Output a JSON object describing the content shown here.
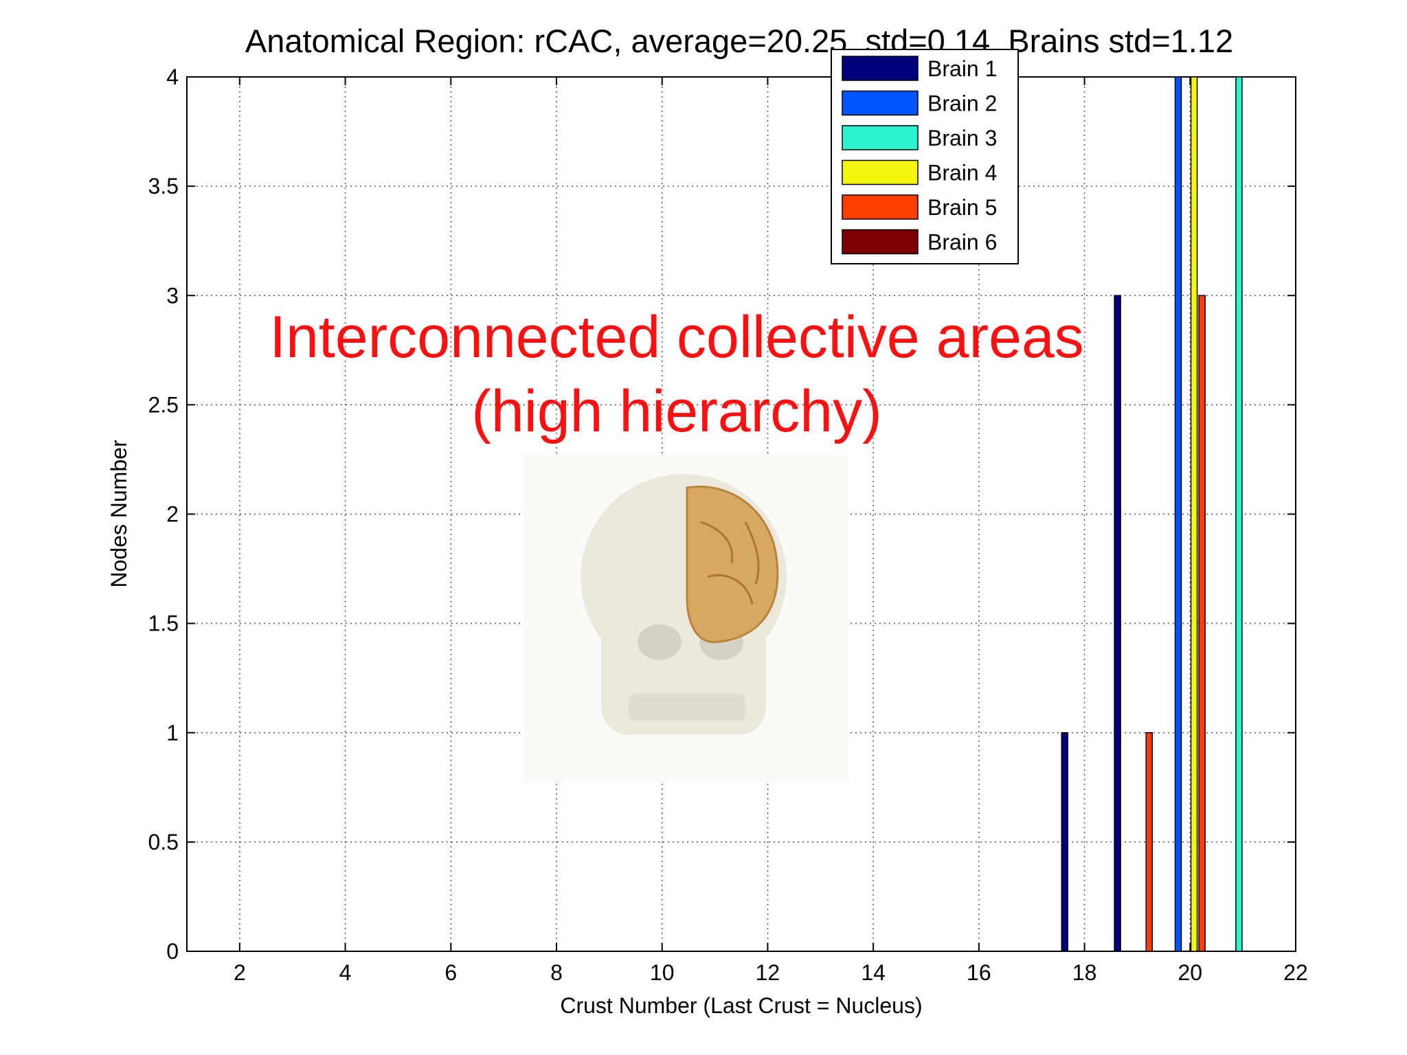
{
  "chart_data": {
    "type": "bar",
    "title": "Anatomical Region:  rCAC, average=20.25, std=0.14, Brains std=1.12",
    "xlabel": "Crust Number (Last Crust = Nucleus)",
    "ylabel": "Nodes Number",
    "xlim": [
      1,
      22
    ],
    "ylim": [
      0,
      4
    ],
    "xticks": [
      2,
      4,
      6,
      8,
      10,
      12,
      14,
      16,
      18,
      20,
      22
    ],
    "yticks": [
      0,
      0.5,
      1,
      1.5,
      2,
      2.5,
      3,
      3.5,
      4
    ],
    "xtick_labels": [
      "2",
      "4",
      "6",
      "8",
      "10",
      "12",
      "14",
      "16",
      "18",
      "20",
      "22"
    ],
    "ytick_labels": [
      "0",
      "0.5",
      "1",
      "1.5",
      "2",
      "2.5",
      "3",
      "3.5",
      "4"
    ],
    "grid": true,
    "legend_position": "top-right",
    "categories": [
      18,
      19,
      20,
      21
    ],
    "series": [
      {
        "name": "Brain 1",
        "color": "#00007f",
        "values": [
          1,
          3,
          0,
          0
        ]
      },
      {
        "name": "Brain 2",
        "color": "#0055ff",
        "values": [
          0,
          0,
          4,
          0
        ]
      },
      {
        "name": "Brain 3",
        "color": "#2cf2d0",
        "values": [
          0,
          0,
          0,
          4
        ]
      },
      {
        "name": "Brain 4",
        "color": "#f5f50f",
        "values": [
          0,
          0,
          4,
          0
        ]
      },
      {
        "name": "Brain 5",
        "color": "#ff3f00",
        "values": [
          0,
          1,
          3,
          0
        ]
      },
      {
        "name": "Brain 6",
        "color": "#7f0000",
        "values": [
          0,
          0,
          0,
          0
        ]
      }
    ],
    "annotations": [
      "Interconnected collective areas",
      "(high hierarchy)"
    ]
  },
  "illustration": {
    "icon": "skull-brain-icon"
  }
}
